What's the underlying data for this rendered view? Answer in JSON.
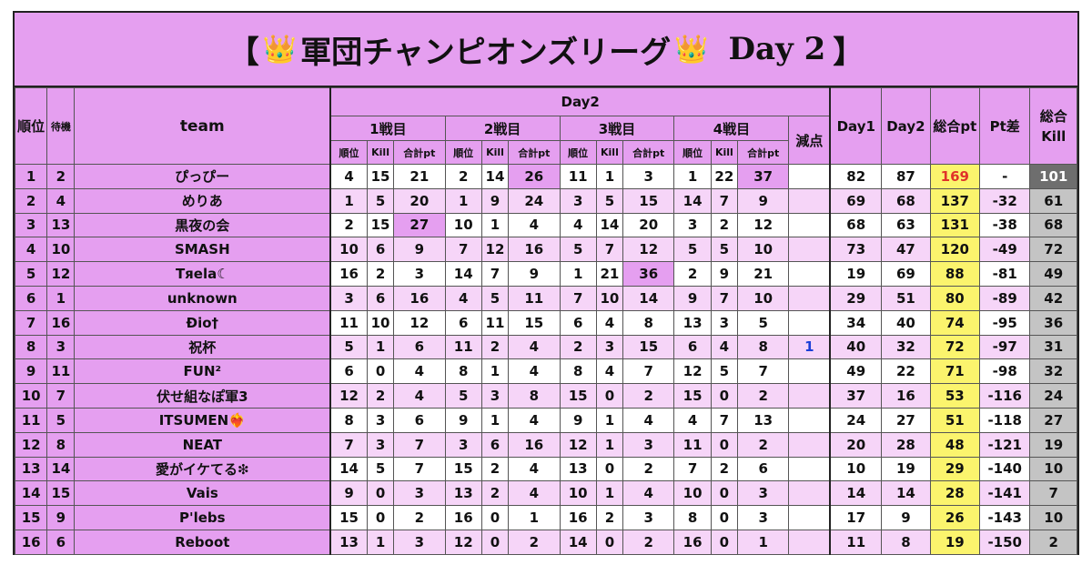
{
  "title": {
    "left_bracket": "【",
    "text": "軍団チャンピオンズリーグ",
    "day": "Day 2",
    "right_bracket": "】",
    "crown_icon": "crown-icon"
  },
  "headers": {
    "rank": "順位",
    "wait": "待機",
    "team": "team",
    "day2_group": "Day2",
    "matches": [
      "1戦目",
      "2戦目",
      "3戦目",
      "4戦目"
    ],
    "sub": [
      "順位",
      "Kill",
      "合計pt"
    ],
    "deduction": "減点",
    "day1": "Day1",
    "day2": "Day2",
    "total_pt": "総合pt",
    "pt_diff": "Pt差",
    "total_kill": "総合Kill"
  },
  "colors": {
    "header_pink": "#e59ff0",
    "light_pink": "#f6d5f8",
    "yellow": "#fbf46d",
    "gray": "#c4c4c4",
    "dark_gray": "#6e6e6e",
    "red": "#e0332a",
    "blue": "#1a3fd8"
  },
  "rows": [
    {
      "rank": "1",
      "wait": "2",
      "team": "ぴっぴー",
      "m": [
        [
          "4",
          "15",
          "21"
        ],
        [
          "2",
          "14",
          "26"
        ],
        [
          "11",
          "1",
          "3"
        ],
        [
          "1",
          "22",
          "37"
        ]
      ],
      "ded": "",
      "d1": "82",
      "d2": "87",
      "pt": "169",
      "diff": "-",
      "kill": "101"
    },
    {
      "rank": "2",
      "wait": "4",
      "team": "めりあ",
      "m": [
        [
          "1",
          "5",
          "20"
        ],
        [
          "1",
          "9",
          "24"
        ],
        [
          "3",
          "5",
          "15"
        ],
        [
          "14",
          "7",
          "9"
        ]
      ],
      "ded": "",
      "d1": "69",
      "d2": "68",
      "pt": "137",
      "diff": "-32",
      "kill": "61"
    },
    {
      "rank": "3",
      "wait": "13",
      "team": "黒夜の会",
      "m": [
        [
          "2",
          "15",
          "27"
        ],
        [
          "10",
          "1",
          "4"
        ],
        [
          "4",
          "14",
          "20"
        ],
        [
          "3",
          "2",
          "12"
        ]
      ],
      "ded": "",
      "d1": "68",
      "d2": "63",
      "pt": "131",
      "diff": "-38",
      "kill": "68"
    },
    {
      "rank": "4",
      "wait": "10",
      "team": "SMASH",
      "m": [
        [
          "10",
          "6",
          "9"
        ],
        [
          "7",
          "12",
          "16"
        ],
        [
          "5",
          "7",
          "12"
        ],
        [
          "5",
          "5",
          "10"
        ]
      ],
      "ded": "",
      "d1": "73",
      "d2": "47",
      "pt": "120",
      "diff": "-49",
      "kill": "72"
    },
    {
      "rank": "5",
      "wait": "12",
      "team": "Tяela☾",
      "m": [
        [
          "16",
          "2",
          "3"
        ],
        [
          "14",
          "7",
          "9"
        ],
        [
          "1",
          "21",
          "36"
        ],
        [
          "2",
          "9",
          "21"
        ]
      ],
      "ded": "",
      "d1": "19",
      "d2": "69",
      "pt": "88",
      "diff": "-81",
      "kill": "49"
    },
    {
      "rank": "6",
      "wait": "1",
      "team": "unknown",
      "m": [
        [
          "3",
          "6",
          "16"
        ],
        [
          "4",
          "5",
          "11"
        ],
        [
          "7",
          "10",
          "14"
        ],
        [
          "9",
          "7",
          "10"
        ]
      ],
      "ded": "",
      "d1": "29",
      "d2": "51",
      "pt": "80",
      "diff": "-89",
      "kill": "42"
    },
    {
      "rank": "7",
      "wait": "16",
      "team": "Ðio†",
      "m": [
        [
          "11",
          "10",
          "12"
        ],
        [
          "6",
          "11",
          "15"
        ],
        [
          "6",
          "4",
          "8"
        ],
        [
          "13",
          "3",
          "5"
        ]
      ],
      "ded": "",
      "d1": "34",
      "d2": "40",
      "pt": "74",
      "diff": "-95",
      "kill": "36"
    },
    {
      "rank": "8",
      "wait": "3",
      "team": "祝杯",
      "m": [
        [
          "5",
          "1",
          "6"
        ],
        [
          "11",
          "2",
          "4"
        ],
        [
          "2",
          "3",
          "15"
        ],
        [
          "6",
          "4",
          "8"
        ]
      ],
      "ded": "1",
      "d1": "40",
      "d2": "32",
      "pt": "72",
      "diff": "-97",
      "kill": "31"
    },
    {
      "rank": "9",
      "wait": "11",
      "team": "FUN²",
      "m": [
        [
          "6",
          "0",
          "4"
        ],
        [
          "8",
          "1",
          "4"
        ],
        [
          "8",
          "4",
          "7"
        ],
        [
          "12",
          "5",
          "7"
        ]
      ],
      "ded": "",
      "d1": "49",
      "d2": "22",
      "pt": "71",
      "diff": "-98",
      "kill": "32"
    },
    {
      "rank": "10",
      "wait": "7",
      "team": "伏せ組なぽ軍3",
      "m": [
        [
          "12",
          "2",
          "4"
        ],
        [
          "5",
          "3",
          "8"
        ],
        [
          "15",
          "0",
          "2"
        ],
        [
          "15",
          "0",
          "2"
        ]
      ],
      "ded": "",
      "d1": "37",
      "d2": "16",
      "pt": "53",
      "diff": "-116",
      "kill": "24"
    },
    {
      "rank": "11",
      "wait": "5",
      "team": "ITSUMEN❤️‍🔥",
      "m": [
        [
          "8",
          "3",
          "6"
        ],
        [
          "9",
          "1",
          "4"
        ],
        [
          "9",
          "1",
          "4"
        ],
        [
          "4",
          "7",
          "13"
        ]
      ],
      "ded": "",
      "d1": "24",
      "d2": "27",
      "pt": "51",
      "diff": "-118",
      "kill": "27"
    },
    {
      "rank": "12",
      "wait": "8",
      "team": "NEAT",
      "m": [
        [
          "7",
          "3",
          "7"
        ],
        [
          "3",
          "6",
          "16"
        ],
        [
          "12",
          "1",
          "3"
        ],
        [
          "11",
          "0",
          "2"
        ]
      ],
      "ded": "",
      "d1": "20",
      "d2": "28",
      "pt": "48",
      "diff": "-121",
      "kill": "19"
    },
    {
      "rank": "13",
      "wait": "14",
      "team": "愛がイケてる❇︎",
      "m": [
        [
          "14",
          "5",
          "7"
        ],
        [
          "15",
          "2",
          "4"
        ],
        [
          "13",
          "0",
          "2"
        ],
        [
          "7",
          "2",
          "6"
        ]
      ],
      "ded": "",
      "d1": "10",
      "d2": "19",
      "pt": "29",
      "diff": "-140",
      "kill": "10"
    },
    {
      "rank": "14",
      "wait": "15",
      "team": "Vais",
      "m": [
        [
          "9",
          "0",
          "3"
        ],
        [
          "13",
          "2",
          "4"
        ],
        [
          "10",
          "1",
          "4"
        ],
        [
          "10",
          "0",
          "3"
        ]
      ],
      "ded": "",
      "d1": "14",
      "d2": "14",
      "pt": "28",
      "diff": "-141",
      "kill": "7"
    },
    {
      "rank": "15",
      "wait": "9",
      "team": "P'lebs",
      "m": [
        [
          "15",
          "0",
          "2"
        ],
        [
          "16",
          "0",
          "1"
        ],
        [
          "16",
          "2",
          "3"
        ],
        [
          "8",
          "0",
          "3"
        ]
      ],
      "ded": "",
      "d1": "17",
      "d2": "9",
      "pt": "26",
      "diff": "-143",
      "kill": "10"
    },
    {
      "rank": "16",
      "wait": "6",
      "team": "Reboot",
      "m": [
        [
          "13",
          "1",
          "3"
        ],
        [
          "12",
          "0",
          "2"
        ],
        [
          "14",
          "0",
          "2"
        ],
        [
          "16",
          "0",
          "1"
        ]
      ],
      "ded": "",
      "d1": "11",
      "d2": "8",
      "pt": "19",
      "diff": "-150",
      "kill": "2"
    }
  ],
  "highlights": [
    {
      "row": 0,
      "match": 1
    },
    {
      "row": 0,
      "match": 3
    },
    {
      "row": 2,
      "match": 0
    },
    {
      "row": 4,
      "match": 2
    }
  ]
}
